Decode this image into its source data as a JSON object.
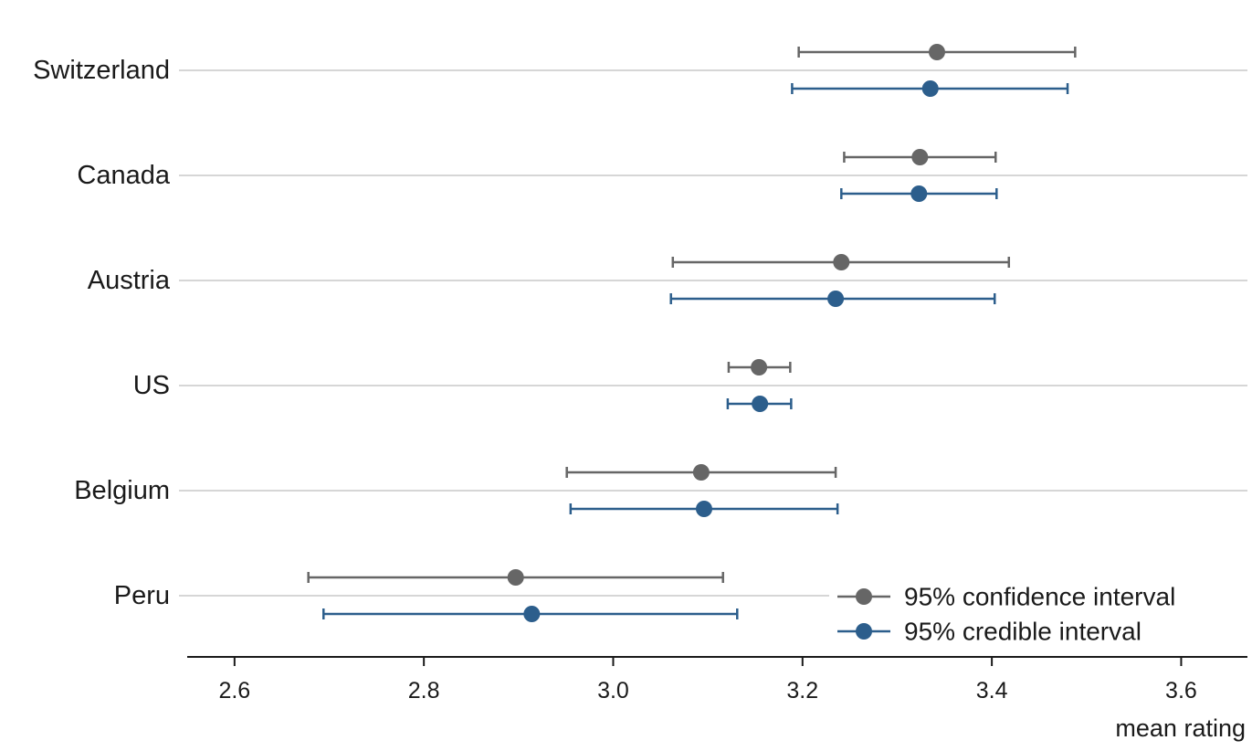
{
  "chart_data": {
    "type": "scatter",
    "title": "",
    "xlabel": "mean rating",
    "ylabel": "",
    "xlim": [
      2.55,
      3.67
    ],
    "x_ticks": [
      "2.6",
      "2.8",
      "3.0",
      "3.2",
      "3.4",
      "3.6"
    ],
    "x_tick_values": [
      2.6,
      2.8,
      3.0,
      3.2,
      3.4,
      3.6
    ],
    "grid": "horizontal",
    "legend_position": "bottom-right",
    "categories": [
      "Switzerland",
      "Canada",
      "Austria",
      "US",
      "Belgium",
      "Peru"
    ],
    "series": [
      {
        "name": "95% confidence interval",
        "color": "#666666",
        "points": [
          {
            "category": "Switzerland",
            "mean": 3.342,
            "low": 3.196,
            "high": 3.488
          },
          {
            "category": "Canada",
            "mean": 3.324,
            "low": 3.244,
            "high": 3.404
          },
          {
            "category": "Austria",
            "mean": 3.241,
            "low": 3.063,
            "high": 3.418
          },
          {
            "category": "US",
            "mean": 3.154,
            "low": 3.122,
            "high": 3.187
          },
          {
            "category": "Belgium",
            "mean": 3.093,
            "low": 2.951,
            "high": 3.235
          },
          {
            "category": "Peru",
            "mean": 2.897,
            "low": 2.678,
            "high": 3.116
          }
        ]
      },
      {
        "name": "95% credible interval",
        "color": "#2c5e8c",
        "points": [
          {
            "category": "Switzerland",
            "mean": 3.335,
            "low": 3.189,
            "high": 3.48
          },
          {
            "category": "Canada",
            "mean": 3.323,
            "low": 3.241,
            "high": 3.405
          },
          {
            "category": "Austria",
            "mean": 3.235,
            "low": 3.061,
            "high": 3.403
          },
          {
            "category": "US",
            "mean": 3.155,
            "low": 3.121,
            "high": 3.188
          },
          {
            "category": "Belgium",
            "mean": 3.096,
            "low": 2.955,
            "high": 3.237
          },
          {
            "category": "Peru",
            "mean": 2.914,
            "low": 2.694,
            "high": 3.131
          }
        ]
      }
    ]
  }
}
